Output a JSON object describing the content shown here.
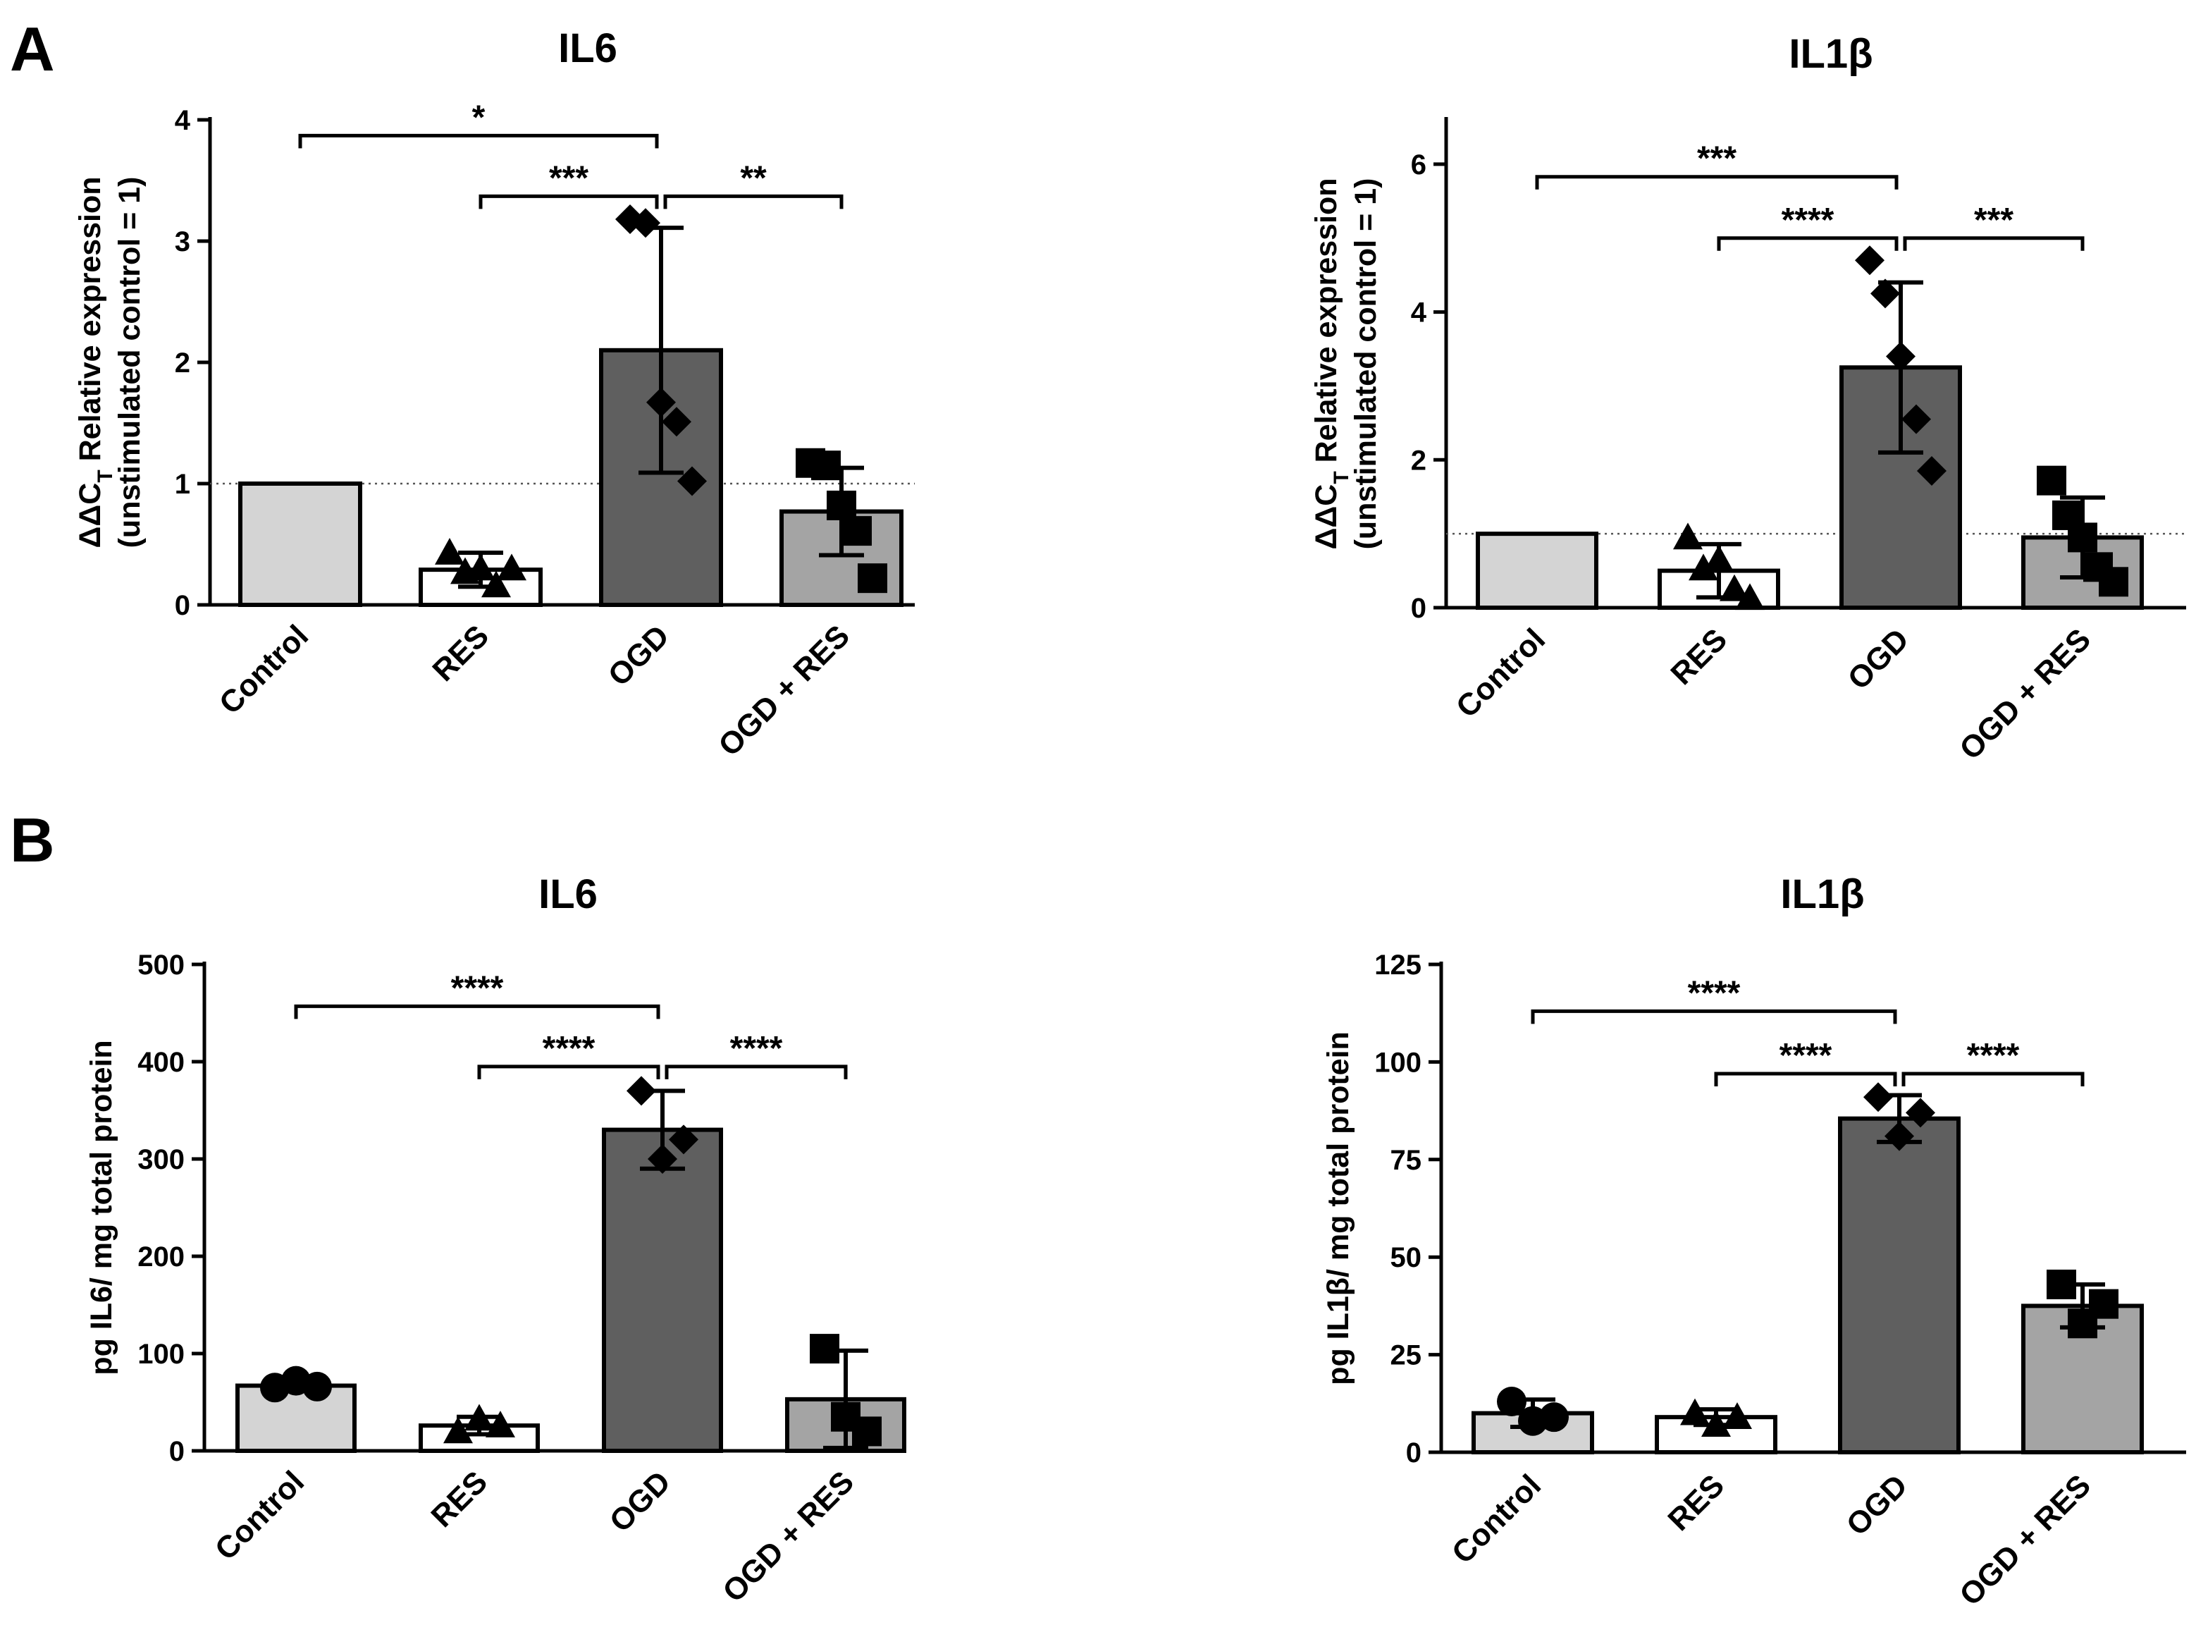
{
  "panels": {
    "A": "A",
    "B": "B"
  },
  "subscript_T": "T",
  "chart_data": [
    {
      "id": "A-IL6",
      "type": "bar",
      "panel": "A",
      "title": "IL6",
      "ylabel_top": "ΔΔC",
      "ylabel_top_rest": " Relative expression",
      "ylabel_bottom": "(unstimulated control = 1)",
      "ylim": [
        0,
        4
      ],
      "yticks": [
        0,
        1,
        2,
        3,
        4
      ],
      "ytick_labels": [
        "0",
        "1",
        "2",
        "3",
        "4"
      ],
      "reference_line": 1,
      "categories": [
        "Control",
        "RES",
        "OGD",
        "OGD + RES"
      ],
      "values": [
        1.0,
        0.29,
        2.1,
        0.77
      ],
      "errors": [
        0,
        0.14,
        1.01,
        0.36
      ],
      "markers": [
        "circle",
        "triangle",
        "diamond",
        "square"
      ],
      "points": [
        [],
        [
          0.43,
          0.27,
          0.3,
          0.16,
          0.3
        ],
        [
          3.18,
          3.15,
          1.67,
          1.51,
          1.02
        ],
        [
          1.17,
          1.15,
          0.82,
          0.61,
          0.22
        ]
      ],
      "fills": [
        "#d4d4d4",
        "#ffffff",
        "#5f5f5f",
        "#a4a4a4"
      ],
      "significance": [
        {
          "from": 0,
          "to": 2,
          "label": "*",
          "y": 3.87
        },
        {
          "from": 1,
          "to": 2,
          "label": "***",
          "y": 3.37
        },
        {
          "from": 2,
          "to": 3,
          "label": "**",
          "y": 3.37
        }
      ]
    },
    {
      "id": "A-IL1b",
      "type": "bar",
      "panel": "A",
      "title": "IL1β",
      "ylabel_top": "ΔΔC",
      "ylabel_top_rest": " Relative expression",
      "ylabel_bottom": "(unstimulated control = 1)",
      "ylim": [
        0,
        6.6
      ],
      "yticks": [
        0,
        2,
        4,
        6
      ],
      "ytick_labels": [
        "0",
        "2",
        "4",
        "6"
      ],
      "reference_line": 1,
      "categories": [
        "Control",
        "RES",
        "OGD",
        "OGD + RES"
      ],
      "values": [
        1.0,
        0.5,
        3.25,
        0.95
      ],
      "errors": [
        0,
        0.36,
        1.15,
        0.54
      ],
      "markers": [
        "circle",
        "triangle",
        "diamond",
        "square"
      ],
      "points": [
        [],
        [
          0.95,
          0.53,
          0.65,
          0.25,
          0.13
        ],
        [
          4.7,
          4.25,
          3.4,
          2.55,
          1.85
        ],
        [
          1.72,
          1.25,
          0.95,
          0.55,
          0.35
        ]
      ],
      "fills": [
        "#d4d4d4",
        "#ffffff",
        "#5f5f5f",
        "#a4a4a4"
      ],
      "significance": [
        {
          "from": 0,
          "to": 2,
          "label": "***",
          "y": 5.83
        },
        {
          "from": 1,
          "to": 2,
          "label": "****",
          "y": 5.0
        },
        {
          "from": 2,
          "to": 3,
          "label": "***",
          "y": 5.0
        }
      ]
    },
    {
      "id": "B-IL6",
      "type": "bar",
      "panel": "B",
      "title": "IL6",
      "ylabel": "pg IL6/ mg total protein",
      "ylim": [
        0,
        500
      ],
      "yticks": [
        0,
        100,
        200,
        300,
        400,
        500
      ],
      "ytick_labels": [
        "0",
        "100",
        "200",
        "300",
        "400",
        "500"
      ],
      "categories": [
        "Control",
        "RES",
        "OGD",
        "OGD + RES"
      ],
      "values": [
        67,
        26,
        330,
        53
      ],
      "errors": [
        5,
        9,
        40,
        50
      ],
      "markers": [
        "circle",
        "triangle",
        "diamond",
        "square"
      ],
      "points": [
        [
          65,
          72,
          66
        ],
        [
          20,
          33,
          26
        ],
        [
          370,
          300,
          320
        ],
        [
          105,
          35,
          20
        ]
      ],
      "fills": [
        "#d4d4d4",
        "#ffffff",
        "#5f5f5f",
        "#a4a4a4"
      ],
      "significance": [
        {
          "from": 0,
          "to": 2,
          "label": "****",
          "y": 457
        },
        {
          "from": 1,
          "to": 2,
          "label": "****",
          "y": 395
        },
        {
          "from": 2,
          "to": 3,
          "label": "****",
          "y": 395
        }
      ]
    },
    {
      "id": "B-IL1b",
      "type": "bar",
      "panel": "B",
      "title": "IL1β",
      "ylabel": "pg IL1β/ mg total protein",
      "ylim": [
        0,
        125
      ],
      "yticks": [
        0,
        25,
        50,
        75,
        100,
        125
      ],
      "ytick_labels": [
        "0",
        "25",
        "50",
        "75",
        "100",
        "125"
      ],
      "categories": [
        "Control",
        "RES",
        "OGD",
        "OGD + RES"
      ],
      "values": [
        10,
        9,
        85.5,
        37.5
      ],
      "errors": [
        3.5,
        2,
        6,
        5.5
      ],
      "markers": [
        "circle",
        "triangle",
        "diamond",
        "square"
      ],
      "points": [
        [
          13,
          8,
          9
        ],
        [
          10,
          7,
          9
        ],
        [
          91,
          81,
          87
        ],
        [
          43,
          33,
          38
        ]
      ],
      "fills": [
        "#d4d4d4",
        "#ffffff",
        "#5f5f5f",
        "#a4a4a4"
      ],
      "significance": [
        {
          "from": 0,
          "to": 2,
          "label": "****",
          "y": 113
        },
        {
          "from": 1,
          "to": 2,
          "label": "****",
          "y": 97
        },
        {
          "from": 2,
          "to": 3,
          "label": "****",
          "y": 97
        }
      ]
    }
  ]
}
